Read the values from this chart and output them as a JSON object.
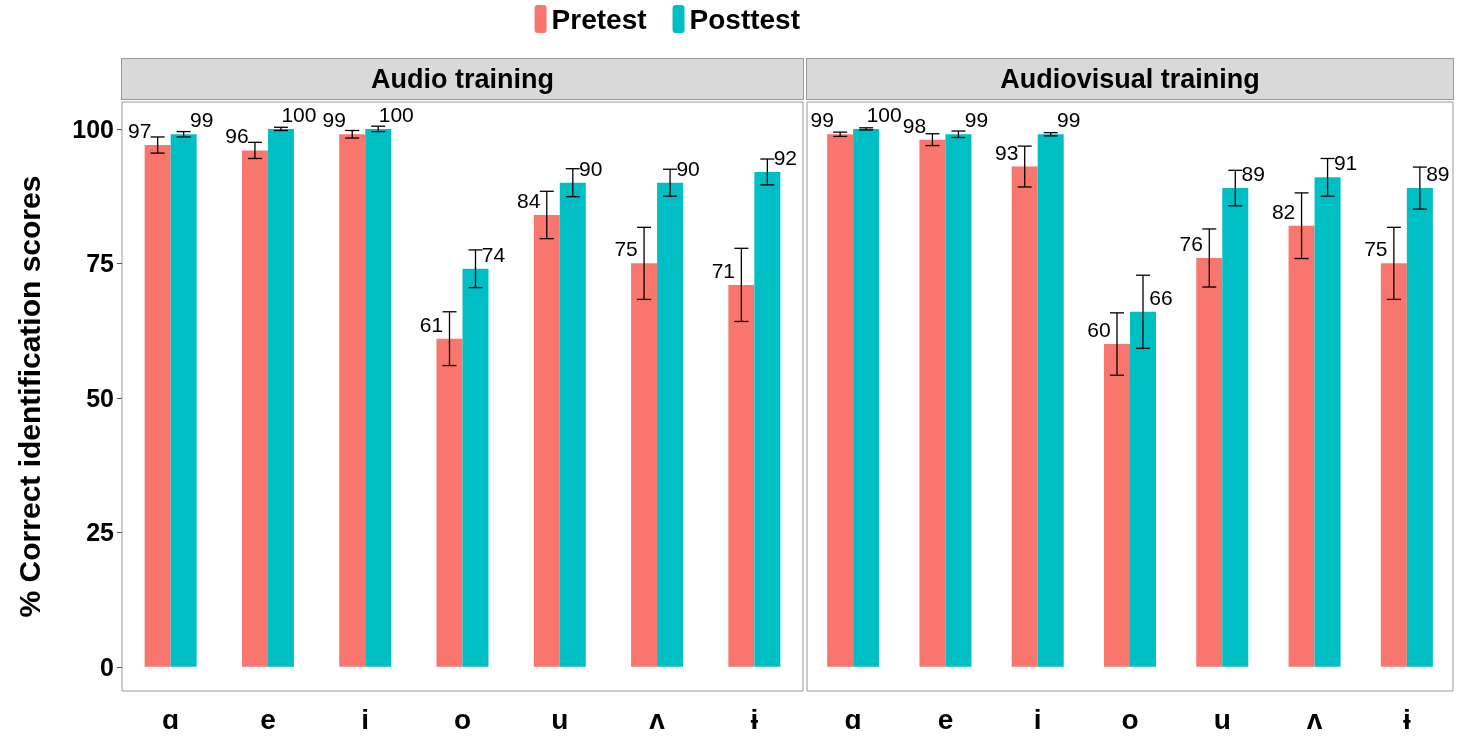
{
  "chart_data": [
    {
      "type": "bar",
      "title": "Audio training",
      "ylabel": "% Correct identification scores",
      "categories": [
        "ɑ",
        "e",
        "i",
        "o",
        "u",
        "ʌ",
        "ɨ"
      ],
      "series": [
        {
          "name": "Pretest",
          "color": "#f8766d",
          "values": [
            97,
            96,
            99,
            61,
            84,
            75,
            71
          ],
          "errors": [
            1.5,
            1.5,
            0.7,
            5,
            4.4,
            6.7,
            6.8
          ]
        },
        {
          "name": "Posttest",
          "color": "#00bfc4",
          "values": [
            99,
            100,
            100,
            74,
            90,
            90,
            92
          ],
          "errors": [
            0.5,
            0.3,
            0.5,
            3.5,
            2.6,
            2.5,
            2.4
          ]
        }
      ],
      "ylim": [
        -4.5,
        105
      ],
      "yticks": [
        0,
        25,
        50,
        75,
        100
      ],
      "data_labels": true,
      "grid": false,
      "legend": "top right"
    },
    {
      "type": "bar",
      "title": "Audiovisual training",
      "categories": [
        "ɑ",
        "e",
        "i",
        "o",
        "u",
        "ʌ",
        "ɨ"
      ],
      "series": [
        {
          "color": "#f8766d",
          "values": [
            99,
            98,
            93,
            60,
            76,
            82,
            75
          ],
          "errors": [
            0.4,
            1.1,
            3.8,
            5.8,
            5.4,
            6.1,
            6.7
          ]
        },
        {
          "color": "#00bfc4",
          "values": [
            100,
            99,
            99,
            66,
            89,
            91,
            89
          ],
          "errors": [
            0.2,
            0.6,
            0.3,
            6.8,
            3.3,
            3.5,
            3.9
          ]
        }
      ],
      "ylim": [
        -4.5,
        105
      ],
      "yticks": [
        0,
        25,
        50,
        75,
        100
      ],
      "data_labels": true,
      "grid": false,
      "legend": false,
      "tick_labels": "x"
    }
  ]
}
